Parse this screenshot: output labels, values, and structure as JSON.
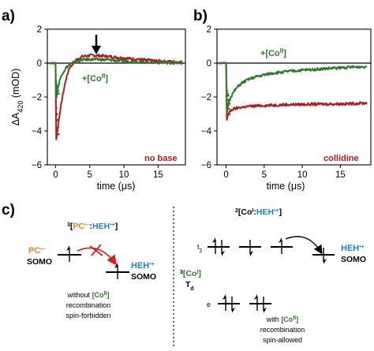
{
  "colors": {
    "red": "#b01c1c",
    "green": "#2a7a2a",
    "orange": "#e8821e",
    "blue": "#1e7fd6",
    "black": "#000000"
  },
  "panel_a": {
    "label": "a)",
    "y_axis_label_main": "ΔA",
    "y_axis_label_sub": "420",
    "y_axis_label_unit": " (mOD)",
    "x_axis_label": "time (μs)",
    "series_label_green": "+[Co",
    "series_label_green_ox": "II",
    "series_label_green_end": "]",
    "condition_label": "no base",
    "arrow_name": "down-arrow"
  },
  "panel_b": {
    "label": "b)",
    "x_axis_label": "time (μs)",
    "series_label_green": "+[Co",
    "series_label_green_ox": "II",
    "series_label_green_end": "]",
    "condition_label": "collidine"
  },
  "chart_data": [
    {
      "panel": "a",
      "type": "line",
      "xlabel": "time (μs)",
      "ylabel": "ΔA420 (mOD)",
      "xlim": [
        -1.2,
        19
      ],
      "ylim": [
        -6,
        2
      ],
      "xticks": [
        "0",
        "5",
        "10",
        "15"
      ],
      "yticks": [
        "−6",
        "−4",
        "−2",
        "0",
        "2"
      ],
      "series": [
        {
          "color": "#b01c1c",
          "x": [
            -1.0,
            0,
            0.1,
            0.2,
            0.4,
            0.6,
            1.0,
            1.5,
            2,
            3,
            4,
            5,
            6,
            7,
            8,
            10,
            12,
            14,
            16,
            18.5
          ],
          "y": [
            0,
            0,
            -4.5,
            -4.2,
            -3.6,
            -3.0,
            -2.0,
            -1.0,
            -0.3,
            0.2,
            0.4,
            0.45,
            0.45,
            0.42,
            0.38,
            0.3,
            0.22,
            0.15,
            0.1,
            0.05
          ]
        },
        {
          "name": "+[CoII]",
          "color": "#2a7a2a",
          "x": [
            -1.0,
            0,
            0.1,
            0.2,
            0.4,
            0.6,
            1.0,
            1.5,
            2,
            3,
            4,
            5,
            6,
            8,
            10,
            12,
            14,
            16,
            18.5
          ],
          "y": [
            0,
            0,
            -2.1,
            -1.8,
            -1.4,
            -1.0,
            -0.6,
            -0.3,
            -0.1,
            0.1,
            0.2,
            0.22,
            0.22,
            0.18,
            0.12,
            0.08,
            0.05,
            0.03,
            0.0
          ]
        }
      ],
      "annotations": [
        "no base"
      ]
    },
    {
      "panel": "b",
      "type": "line",
      "xlabel": "time (μs)",
      "xlim": [
        -1.2,
        19
      ],
      "ylim": [
        -6,
        2
      ],
      "xticks": [
        "0",
        "5",
        "10",
        "15"
      ],
      "yticks": [
        "−6",
        "−4",
        "−2",
        "0",
        "2"
      ],
      "series": [
        {
          "color": "#b01c1c",
          "x": [
            -1.0,
            0,
            0.1,
            0.3,
            0.6,
            1.0,
            1.5,
            2,
            3,
            5,
            8,
            12,
            16,
            18.5
          ],
          "y": [
            0,
            0,
            -3.3,
            -3.0,
            -2.8,
            -2.7,
            -2.65,
            -2.6,
            -2.55,
            -2.5,
            -2.45,
            -2.42,
            -2.4,
            -2.35
          ]
        },
        {
          "name": "+[CoII]",
          "color": "#2a7a2a",
          "x": [
            -1.0,
            0,
            0.1,
            0.3,
            0.6,
            1.0,
            1.5,
            2,
            3,
            4,
            6,
            8,
            10,
            12,
            14,
            16,
            18.5
          ],
          "y": [
            0,
            0,
            -2.9,
            -2.4,
            -2.0,
            -1.7,
            -1.4,
            -1.2,
            -0.95,
            -0.8,
            -0.6,
            -0.5,
            -0.42,
            -0.36,
            -0.3,
            -0.25,
            -0.2
          ]
        }
      ],
      "annotations": [
        "collidine"
      ]
    }
  ],
  "panel_c": {
    "label": "c)",
    "left": {
      "pair_super": "3",
      "pair_text_1": "[",
      "pair_pc": "PC",
      "pair_pc_sup": "•−",
      "pair_colon": ":",
      "pair_heh": "HEH",
      "pair_heh_sup": "•+",
      "pair_end": "]",
      "pc_label": "PC",
      "pc_sup": "•−",
      "somo_left": "SOMO",
      "heh_label": "HEH",
      "heh_sup": "•+",
      "somo_right": "SOMO",
      "caption_line1_a": "without ",
      "caption_line1_b": "[Co",
      "caption_line1_ox": "II",
      "caption_line1_c": "]",
      "caption_line2": "recombination",
      "caption_line3": "spin-forbidden"
    },
    "right": {
      "pair_super": "2",
      "pair_text_1": "[Co",
      "pair_ox": "I",
      "pair_colon": ":",
      "pair_heh": "HEH",
      "pair_heh_sup": "•+",
      "pair_end": "]",
      "t2_label": "t",
      "t2_sub": "2",
      "e_label": "e",
      "co_super": "3",
      "co_label": "[Co",
      "co_ox": "I",
      "co_end": "]",
      "td_label": "T",
      "td_sub": "d",
      "heh_label": "HEH",
      "heh_sup": "•+",
      "somo": "SOMO",
      "caption_line1_a": "with ",
      "caption_line1_b": "[Co",
      "caption_line1_ox": "II",
      "caption_line1_c": "]",
      "caption_line2": "recombination",
      "caption_line3": "spin-allowed"
    }
  }
}
